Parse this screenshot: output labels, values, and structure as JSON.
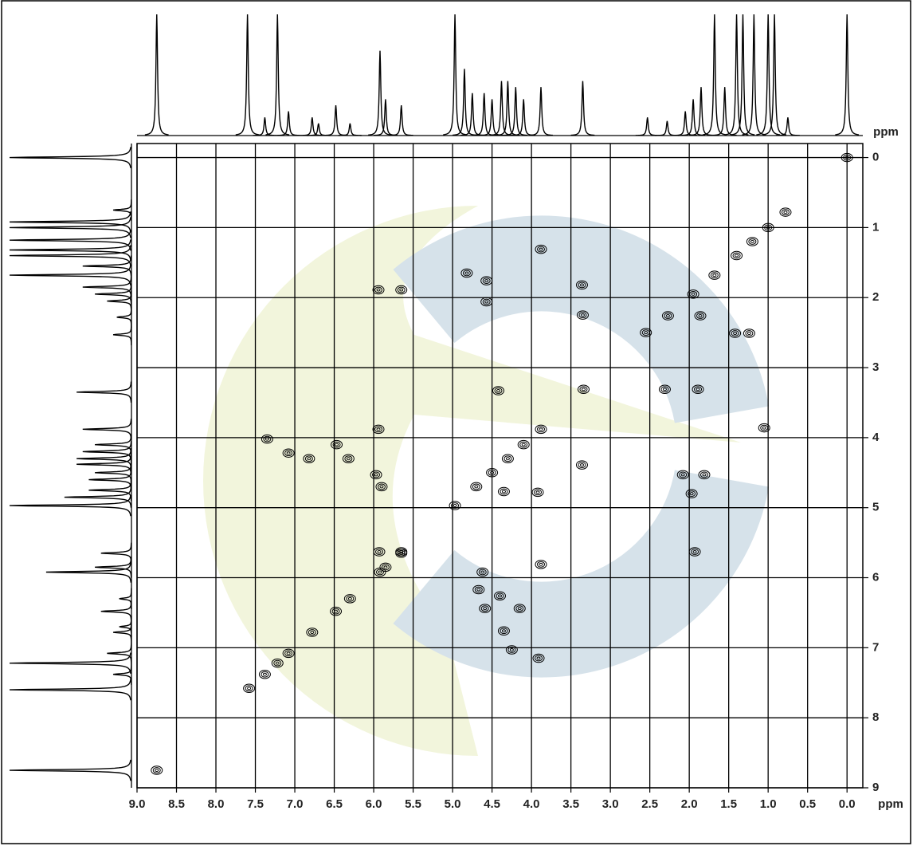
{
  "chart_data": {
    "type": "cosy",
    "x_label": "ppm",
    "y_label": "ppm",
    "xlim": [
      9.0,
      -0.2
    ],
    "ylim": [
      -0.2,
      9.0
    ],
    "xticks": [
      {
        "value": 9,
        "label": "9.0"
      },
      {
        "value": 8.5,
        "label": "8.5"
      },
      {
        "value": 8,
        "label": "8.0"
      },
      {
        "value": 7.5,
        "label": "7.5"
      },
      {
        "value": 7,
        "label": "7.0"
      },
      {
        "value": 6.5,
        "label": "6.5"
      },
      {
        "value": 6,
        "label": "6.0"
      },
      {
        "value": 5.5,
        "label": "5.5"
      },
      {
        "value": 5,
        "label": "5.0"
      },
      {
        "value": 4.5,
        "label": "4.5"
      },
      {
        "value": 4,
        "label": "4.0"
      },
      {
        "value": 3.5,
        "label": "3.5"
      },
      {
        "value": 3,
        "label": "3.0"
      },
      {
        "value": 2.5,
        "label": "2.5"
      },
      {
        "value": 2,
        "label": "2.0"
      },
      {
        "value": 1.5,
        "label": "1.5"
      },
      {
        "value": 1,
        "label": "1.0"
      },
      {
        "value": 0.5,
        "label": "0.5"
      },
      {
        "value": 0,
        "label": "0.0"
      }
    ],
    "yticks": [
      0,
      1,
      2,
      3,
      4,
      5,
      6,
      7,
      8,
      9
    ],
    "grid": true,
    "color": "#000000",
    "projection_ylim": [
      0,
      100
    ],
    "projection": {
      "x": [
        8.75,
        7.6,
        7.38,
        7.22,
        7.08,
        6.78,
        6.7,
        6.48,
        6.3,
        5.92,
        5.85,
        5.65,
        4.97,
        4.85,
        4.75,
        4.6,
        4.5,
        4.38,
        4.3,
        4.2,
        4.1,
        3.88,
        3.35,
        2.53,
        2.28,
        2.05,
        1.95,
        1.85,
        1.68,
        1.55,
        1.4,
        1.32,
        1.18,
        1.0,
        0.92,
        0.75,
        0.0
      ],
      "values": [
        100,
        100,
        15,
        100,
        20,
        15,
        10,
        25,
        10,
        70,
        30,
        25,
        100,
        55,
        35,
        35,
        30,
        45,
        45,
        40,
        30,
        40,
        45,
        15,
        12,
        20,
        30,
        40,
        100,
        40,
        100,
        100,
        100,
        100,
        100,
        15,
        100
      ]
    },
    "peaks": {
      "x": [
        8.75,
        7.58,
        7.38,
        7.22,
        7.08,
        6.78,
        6.48,
        6.3,
        5.92,
        5.85,
        5.65,
        4.97,
        4.7,
        4.5,
        4.3,
        4.1,
        3.88,
        3.34,
        2.55,
        2.27,
        1.95,
        1.68,
        1.4,
        1.2,
        1.0,
        0.78,
        0.0,
        4.82,
        4.57,
        4.57,
        3.88,
        3.36,
        3.35,
        4.42,
        2.31,
        1.89,
        1.05,
        1.86,
        1.42,
        1.24,
        1.97,
        2.08,
        1.81,
        1.93,
        5.94,
        7.35,
        7.08,
        6.82,
        6.47,
        6.32,
        5.97,
        5.9,
        5.93,
        5.65,
        5.65,
        5.94,
        4.67,
        4.4,
        4.59,
        4.15,
        4.35,
        4.25,
        3.91,
        4.35,
        3.92,
        3.36,
        4.62,
        3.88
      ],
      "y": [
        8.75,
        7.58,
        7.38,
        7.22,
        7.08,
        6.78,
        6.48,
        6.3,
        5.92,
        5.85,
        5.65,
        4.97,
        4.7,
        4.5,
        4.3,
        4.1,
        3.88,
        3.31,
        2.5,
        2.26,
        1.95,
        1.68,
        1.4,
        1.2,
        1.0,
        0.78,
        0.0,
        1.65,
        1.76,
        2.06,
        1.31,
        1.82,
        2.25,
        3.33,
        3.31,
        3.31,
        3.86,
        2.26,
        2.51,
        2.51,
        4.8,
        4.53,
        4.53,
        5.63,
        3.88,
        4.02,
        4.22,
        4.3,
        4.1,
        4.3,
        4.53,
        4.7,
        5.63,
        5.63,
        1.89,
        1.89,
        6.17,
        6.26,
        6.44,
        6.44,
        6.76,
        7.03,
        7.15,
        4.77,
        4.78,
        4.39,
        5.92,
        5.81
      ]
    }
  }
}
